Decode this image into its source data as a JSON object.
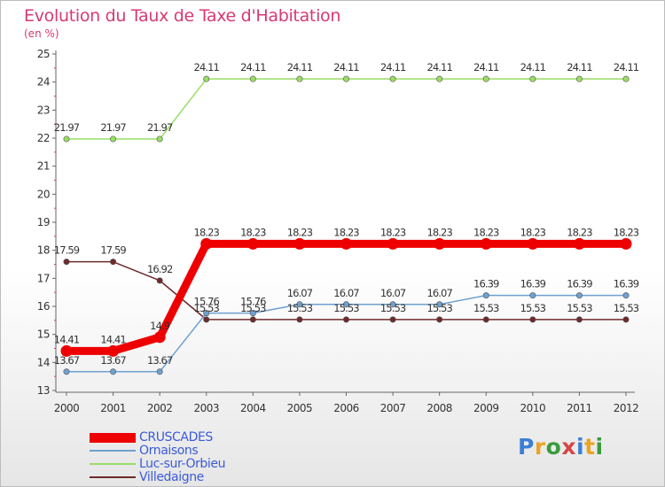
{
  "chart_data": {
    "type": "line",
    "title": "Evolution du Taux de Taxe d'Habitation",
    "ylabel": "(en %)",
    "xlabel": "",
    "ylim": [
      13,
      25
    ],
    "yticks": [
      "13",
      "14",
      "15",
      "16",
      "17",
      "18",
      "19",
      "20",
      "21",
      "22",
      "23",
      "24",
      "25"
    ],
    "categories": [
      "2000",
      "2001",
      "2002",
      "2003",
      "2004",
      "2005",
      "2006",
      "2007",
      "2008",
      "2009",
      "2010",
      "2011",
      "2012"
    ],
    "series": [
      {
        "name": "CRUSCADES",
        "color": "#ee0000",
        "values": [
          14.41,
          14.41,
          14.9,
          18.23,
          18.23,
          18.23,
          18.23,
          18.23,
          18.23,
          18.23,
          18.23,
          18.23,
          18.23
        ],
        "labels": [
          "14.41",
          "14.41",
          "14.9",
          "18.23",
          "18.23",
          "18.23",
          "18.23",
          "18.23",
          "18.23",
          "18.23",
          "18.23",
          "18.23",
          "18.23"
        ]
      },
      {
        "name": "Ornaisons",
        "color": "#6fa1cf",
        "values": [
          13.67,
          13.67,
          13.67,
          15.76,
          15.76,
          16.07,
          16.07,
          16.07,
          16.07,
          16.39,
          16.39,
          16.39,
          16.39
        ],
        "labels": [
          "13.67",
          "13.67",
          "13.67",
          "15.76",
          "15.76",
          "16.07",
          "16.07",
          "16.07",
          "16.07",
          "16.39",
          "16.39",
          "16.39",
          "16.39"
        ]
      },
      {
        "name": "Luc-sur-Orbieu",
        "color": "#99dd66",
        "values": [
          21.97,
          21.97,
          21.97,
          24.11,
          24.11,
          24.11,
          24.11,
          24.11,
          24.11,
          24.11,
          24.11,
          24.11,
          24.11
        ],
        "labels": [
          "21.97",
          "21.97",
          "21.97",
          "24.11",
          "24.11",
          "24.11",
          "24.11",
          "24.11",
          "24.11",
          "24.11",
          "24.11",
          "24.11",
          "24.11"
        ]
      },
      {
        "name": "Villedaigne",
        "color": "#6e2a2a",
        "values": [
          17.59,
          17.59,
          16.92,
          15.53,
          15.53,
          15.53,
          15.53,
          15.53,
          15.53,
          15.53,
          15.53,
          15.53,
          15.53
        ],
        "labels": [
          "17.59",
          "17.59",
          "16.92",
          "15.53",
          "15.53",
          "15.53",
          "15.53",
          "15.53",
          "15.53",
          "15.53",
          "15.53",
          "15.53",
          "15.53"
        ]
      }
    ],
    "grid": false,
    "legend": "bottom-left"
  },
  "branding": {
    "logo": [
      "P",
      "r",
      "o",
      "x",
      "i",
      "t",
      "i"
    ]
  }
}
